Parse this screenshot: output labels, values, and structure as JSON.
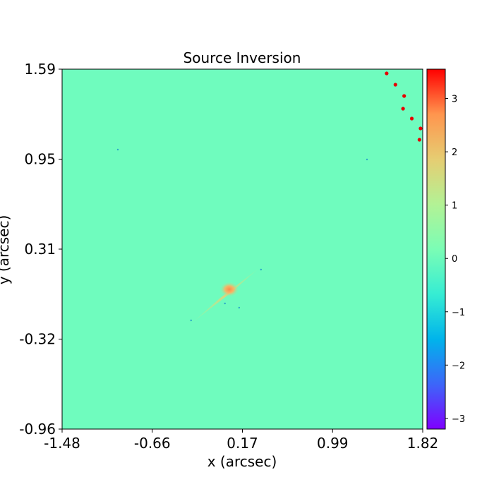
{
  "chart_data": {
    "type": "heatmap",
    "title": "Source Inversion",
    "xlabel": "x (arcsec)",
    "ylabel": "y (arcsec)",
    "xlim": [
      -1.48,
      1.82
    ],
    "ylim": [
      -0.96,
      1.59
    ],
    "xticks": [
      "-1.48",
      "-0.66",
      "0.17",
      "0.99",
      "1.82"
    ],
    "yticks": [
      "1.59",
      "0.95",
      "0.31",
      "-0.32",
      "-0.96"
    ],
    "colorbar": {
      "range": [
        -3.2,
        3.55
      ],
      "ticks": [
        "3",
        "2",
        "1",
        "0",
        "−1",
        "−2",
        "−3"
      ],
      "colors": [
        "#7f00ff",
        "#3c66f9",
        "#00b4eb",
        "#36edd3",
        "#7bfdb5",
        "#b3f295",
        "#e6cd72",
        "#ff954e",
        "#ff0000"
      ]
    },
    "background_value": 0,
    "features": {
      "central_blob": {
        "x": 0.05,
        "y": 0.03,
        "value": 2.8
      },
      "extended_streak": {
        "x_range": [
          -0.28,
          0.32
        ],
        "y_range": [
          -0.2,
          0.18
        ],
        "value": 0.9
      }
    },
    "scatter_points": [
      {
        "x": 1.49,
        "y": 1.56
      },
      {
        "x": 1.57,
        "y": 1.48
      },
      {
        "x": 1.65,
        "y": 1.4
      },
      {
        "x": 1.64,
        "y": 1.31
      },
      {
        "x": 1.72,
        "y": 1.24
      },
      {
        "x": 1.8,
        "y": 1.17
      },
      {
        "x": 1.79,
        "y": 1.09
      }
    ],
    "minor_points": [
      {
        "x": -0.97,
        "y": 1.02
      },
      {
        "x": 1.31,
        "y": 0.95
      },
      {
        "x": -0.3,
        "y": -0.19
      },
      {
        "x": 0.34,
        "y": 0.17
      },
      {
        "x": 0.14,
        "y": -0.1
      },
      {
        "x": 0.01,
        "y": -0.07
      }
    ]
  }
}
